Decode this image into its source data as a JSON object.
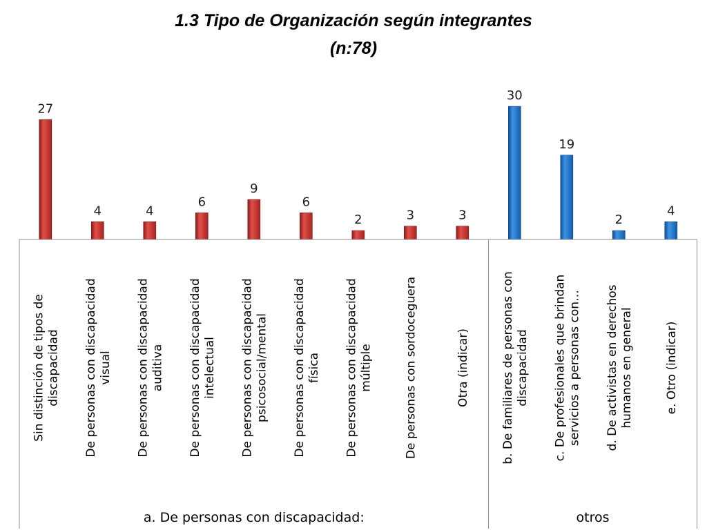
{
  "chart_data": {
    "type": "bar",
    "title": "1.3 Tipo de Organización según integrantes",
    "subtitle": "(n:78)",
    "xlabel": "",
    "ylabel": "",
    "ylim": [
      0,
      32
    ],
    "grid": false,
    "legend": "none",
    "colors": {
      "group_a": "#c0302b",
      "group_b": "#1a6fc4"
    },
    "groups": [
      {
        "name": "a.  De personas con discapacidad:",
        "color_key": "group_a",
        "categories": [
          [
            "Sin distinción de tipos de",
            "discapacidad"
          ],
          [
            "De personas con discapacidad",
            "visual"
          ],
          [
            "De personas con discapacidad",
            "auditiva"
          ],
          [
            "De personas con discapacidad",
            "intelectual"
          ],
          [
            "De personas con discapacidad",
            "psicosocial/mental"
          ],
          [
            "De personas con discapacidad",
            "física"
          ],
          [
            "De personas con discapacidad",
            "múltiple"
          ],
          [
            "De personas con sordoceguera"
          ],
          [
            "Otra (indicar)"
          ]
        ],
        "values": [
          27,
          4,
          4,
          6,
          9,
          6,
          2,
          3,
          3
        ]
      },
      {
        "name": "otros",
        "color_key": "group_b",
        "categories": [
          [
            "b.  De familiares de personas con",
            "discapacidad"
          ],
          [
            "c. De profesionales que brindan",
            "servicios a personas con…"
          ],
          [
            "d. De activistas en derechos",
            "humanos en general"
          ],
          [
            "e. Otro (indicar)"
          ]
        ],
        "values": [
          30,
          19,
          2,
          4
        ]
      }
    ]
  }
}
